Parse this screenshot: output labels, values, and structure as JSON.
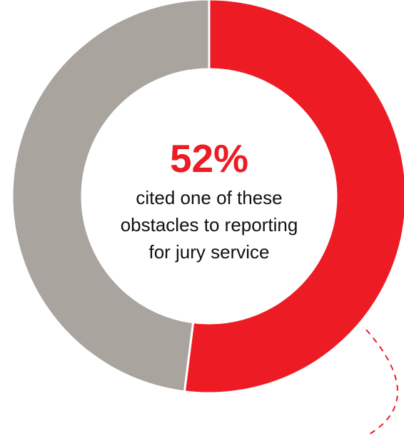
{
  "chart_data": {
    "type": "pie",
    "style": "donut",
    "slices": [
      {
        "value": 52,
        "color": "#ed1c24"
      },
      {
        "value": 48,
        "color": "#aaa49f"
      }
    ],
    "center_value": "52%",
    "center_caption_lines": [
      "cited one of these",
      "obstacles to reporting",
      "for jury service"
    ],
    "accent_color": "#ed1c24",
    "connector": "dashed-red-line"
  }
}
